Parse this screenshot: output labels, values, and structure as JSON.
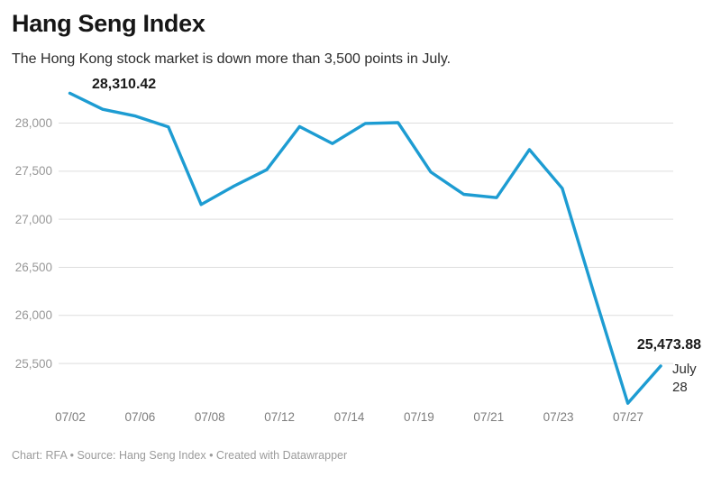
{
  "header": {
    "title": "Hang Seng Index",
    "subtitle": "The Hong Kong stock market is down more than 3,500 points in July."
  },
  "footer": {
    "credit": "Chart: RFA • Source: Hang Seng Index • Created with Datawrapper"
  },
  "colors": {
    "line": "#1d9cd2",
    "grid": "#dedede",
    "background": "#ffffff",
    "title_text": "#161616",
    "subtitle_text": "#2b2b2b",
    "y_axis_text": "#989898",
    "x_axis_text": "#7d7d7d",
    "annotation_text": "#1a1a1a",
    "footer_text": "#9b9b9b"
  },
  "chart_data": {
    "type": "line",
    "title": "Hang Seng Index",
    "subtitle": "The Hong Kong stock market is down more than 3,500 points in July.",
    "xlabel": "",
    "ylabel": "",
    "grid": "horizontal-only",
    "legend": "none",
    "ylim": [
      25050,
      28400
    ],
    "x": [
      "07/02",
      "07/05",
      "07/06",
      "07/07",
      "07/08",
      "07/09",
      "07/12",
      "07/13",
      "07/14",
      "07/15",
      "07/16",
      "07/19",
      "07/20",
      "07/21",
      "07/22",
      "07/23",
      "07/26",
      "07/27",
      "07/28"
    ],
    "values": [
      28310.42,
      28143.5,
      28072.86,
      27960.62,
      27153.13,
      27344.54,
      27515.24,
      27963.41,
      27787.46,
      27996.27,
      28004.68,
      27489.78,
      27259.25,
      27224.58,
      27723.84,
      27321.98,
      26192.32,
      25086.43,
      25473.88
    ],
    "y_ticks": [
      {
        "label": "28,000",
        "value": 28000
      },
      {
        "label": "27,500",
        "value": 27500
      },
      {
        "label": "27,000",
        "value": 27000
      },
      {
        "label": "26,500",
        "value": 26500
      },
      {
        "label": "26,000",
        "value": 26000
      },
      {
        "label": "25,500",
        "value": 25500
      }
    ],
    "x_ticks": [
      "07/02",
      "07/06",
      "07/08",
      "07/12",
      "07/14",
      "07/19",
      "07/21",
      "07/23",
      "07/27"
    ],
    "annotations": {
      "start_value": "28,310.42",
      "end_value": "25,473.88",
      "end_date": "July 28"
    }
  }
}
